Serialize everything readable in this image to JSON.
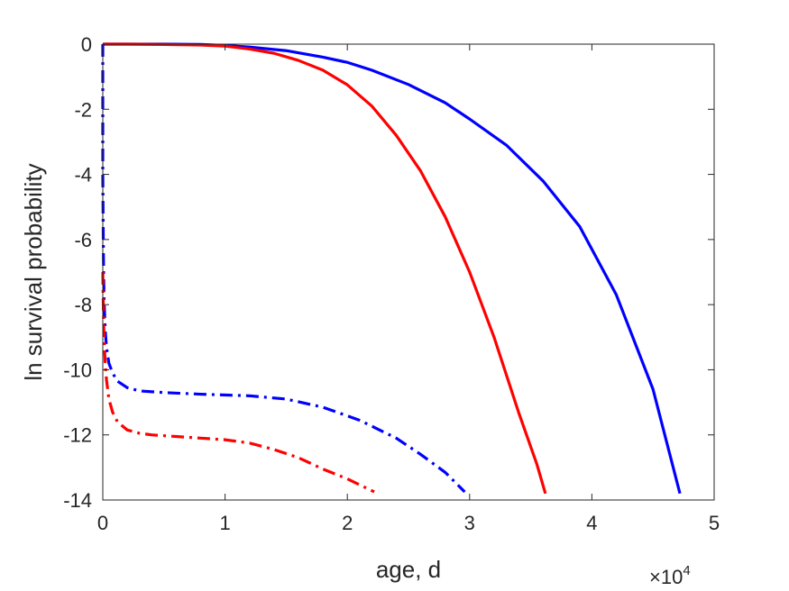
{
  "chart_data": {
    "type": "line",
    "xlabel": "age, d",
    "ylabel": "ln survival probability",
    "x_multiplier": {
      "base": "×10",
      "exponent": "4"
    },
    "xlim": [
      0,
      50000
    ],
    "ylim": [
      -14,
      0
    ],
    "xticks": [
      0,
      1,
      2,
      3,
      4,
      5
    ],
    "yticks": [
      0,
      -2,
      -4,
      -6,
      -8,
      -10,
      -12,
      -14
    ],
    "grid": false,
    "series": [
      {
        "color": "#0000ff",
        "style": "solid",
        "x": [
          0,
          2000,
          5000,
          8000,
          10000,
          12000,
          15000,
          18000,
          20000,
          22000,
          25000,
          28000,
          30000,
          33000,
          36000,
          39000,
          42000,
          45000,
          47200
        ],
        "y": [
          0,
          0,
          0,
          -0.01,
          -0.04,
          -0.09,
          -0.2,
          -0.4,
          -0.56,
          -0.8,
          -1.24,
          -1.8,
          -2.3,
          -3.1,
          -4.2,
          -5.6,
          -7.7,
          -10.6,
          -13.8
        ]
      },
      {
        "color": "#ff0000",
        "style": "solid",
        "x": [
          0,
          2000,
          5000,
          8000,
          10000,
          12000,
          14000,
          16000,
          18000,
          20000,
          22000,
          24000,
          26000,
          28000,
          30000,
          32000,
          34000,
          35500,
          36200
        ],
        "y": [
          0,
          0,
          -0.01,
          -0.03,
          -0.06,
          -0.15,
          -0.28,
          -0.5,
          -0.8,
          -1.25,
          -1.9,
          -2.8,
          -3.9,
          -5.3,
          -7.0,
          -9.0,
          -11.3,
          -12.9,
          -13.8
        ]
      },
      {
        "color": "#0000ff",
        "style": "dashdot",
        "x": [
          0,
          0,
          50,
          100,
          200,
          300,
          500,
          800,
          1200,
          2000,
          3000,
          5000,
          8000,
          12000,
          15000,
          18000,
          21000,
          24000,
          26000,
          28000,
          29600
        ],
        "y": [
          0,
          -4,
          -6.5,
          -7.8,
          -8.8,
          -9.3,
          -9.8,
          -10.1,
          -10.35,
          -10.55,
          -10.65,
          -10.7,
          -10.75,
          -10.8,
          -10.9,
          -11.15,
          -11.55,
          -12.1,
          -12.6,
          -13.15,
          -13.75
        ]
      },
      {
        "color": "#ff0000",
        "style": "dashdot",
        "x": [
          0,
          50,
          100,
          200,
          300,
          500,
          800,
          1200,
          2000,
          3000,
          4000,
          6000,
          8000,
          10000,
          12000,
          14000,
          16000,
          18000,
          20000,
          22200
        ],
        "y": [
          -7,
          -8.2,
          -9,
          -9.8,
          -10.3,
          -10.9,
          -11.3,
          -11.6,
          -11.85,
          -11.95,
          -12.0,
          -12.05,
          -12.1,
          -12.15,
          -12.25,
          -12.45,
          -12.7,
          -13.05,
          -13.35,
          -13.75
        ]
      }
    ]
  }
}
